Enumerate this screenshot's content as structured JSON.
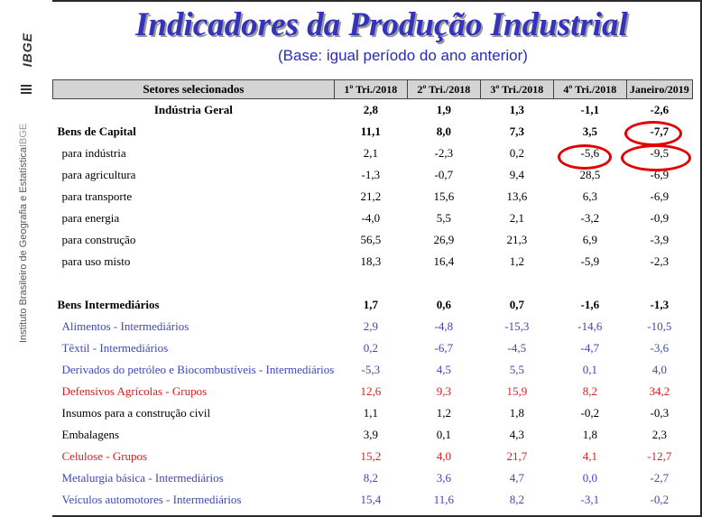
{
  "header": {
    "title": "Indicadores da Produção Industrial",
    "subtitle": "(Base: igual período do ano anterior)"
  },
  "sidebar": {
    "logo_text": "IBGE",
    "institute": "Instituto Brasileiro de Geografia e Estatística",
    "acronym": "IBGE"
  },
  "table": {
    "columns": [
      "Setores selecionados",
      "1º Tri./2018",
      "2º Tri./2018",
      "3º Tri./2018",
      "4º Tri./2018",
      "Janeiro/2019"
    ],
    "rows": [
      {
        "label": "Indústria Geral",
        "values": [
          "2,8",
          "1,9",
          "1,3",
          "-1,1",
          "-2,6"
        ]
      },
      {
        "label": "Bens de Capital",
        "values": [
          "11,1",
          "8,0",
          "7,3",
          "3,5",
          "-7,7"
        ]
      },
      {
        "label": "para indústria",
        "values": [
          "2,1",
          "-2,3",
          "0,2",
          "-5,6",
          "-9,5"
        ]
      },
      {
        "label": "para agricultura",
        "values": [
          "-1,3",
          "-0,7",
          "9,4",
          "28,5",
          "-6,9"
        ]
      },
      {
        "label": "para transporte",
        "values": [
          "21,2",
          "15,6",
          "13,6",
          "6,3",
          "-6,9"
        ]
      },
      {
        "label": "para energia",
        "values": [
          "-4,0",
          "5,5",
          "2,1",
          "-3,2",
          "-0,9"
        ]
      },
      {
        "label": "para construção",
        "values": [
          "56,5",
          "26,9",
          "21,3",
          "6,9",
          "-3,9"
        ]
      },
      {
        "label": "para uso misto",
        "values": [
          "18,3",
          "16,4",
          "1,2",
          "-5,9",
          "-2,3"
        ]
      },
      {
        "label": "Bens Intermediários",
        "values": [
          "1,7",
          "0,6",
          "0,7",
          "-1,6",
          "-1,3"
        ]
      },
      {
        "label": "Alimentos - Intermediários",
        "values": [
          "2,9",
          "-4,8",
          "-15,3",
          "-14,6",
          "-10,5"
        ]
      },
      {
        "label": "Têxtil - Intermediários",
        "values": [
          "0,2",
          "-6,7",
          "-4,5",
          "-4,7",
          "-3,6"
        ]
      },
      {
        "label": "Derivados do petróleo e Biocombustíveis - Intermediários",
        "values": [
          "-5,3",
          "4,5",
          "5,5",
          "0,1",
          "4,0"
        ]
      },
      {
        "label": "Defensivos Agrícolas - Grupos",
        "values": [
          "12,6",
          "9,3",
          "15,9",
          "8,2",
          "34,2"
        ]
      },
      {
        "label": "Insumos para a construção civil",
        "values": [
          "1,1",
          "1,2",
          "1,8",
          "-0,2",
          "-0,3"
        ]
      },
      {
        "label": "Embalagens",
        "values": [
          "3,9",
          "0,1",
          "4,3",
          "1,8",
          "2,3"
        ]
      },
      {
        "label": "Celulose - Grupos",
        "values": [
          "15,2",
          "4,0",
          "21,7",
          "4,1",
          "-12,7"
        ]
      },
      {
        "label": "Metalurgia básica - Intermediários",
        "values": [
          "8,2",
          "3,6",
          "4,7",
          "0,0",
          "-2,7"
        ]
      },
      {
        "label": "Veículos automotores - Intermediários",
        "values": [
          "15,4",
          "11,6",
          "8,2",
          "-3,1",
          "-0,2"
        ]
      }
    ]
  },
  "colors": {
    "title": "#3333bb",
    "blue_rows": "#4046b8",
    "red_rows": "#d42020",
    "highlight": "#e10000"
  }
}
